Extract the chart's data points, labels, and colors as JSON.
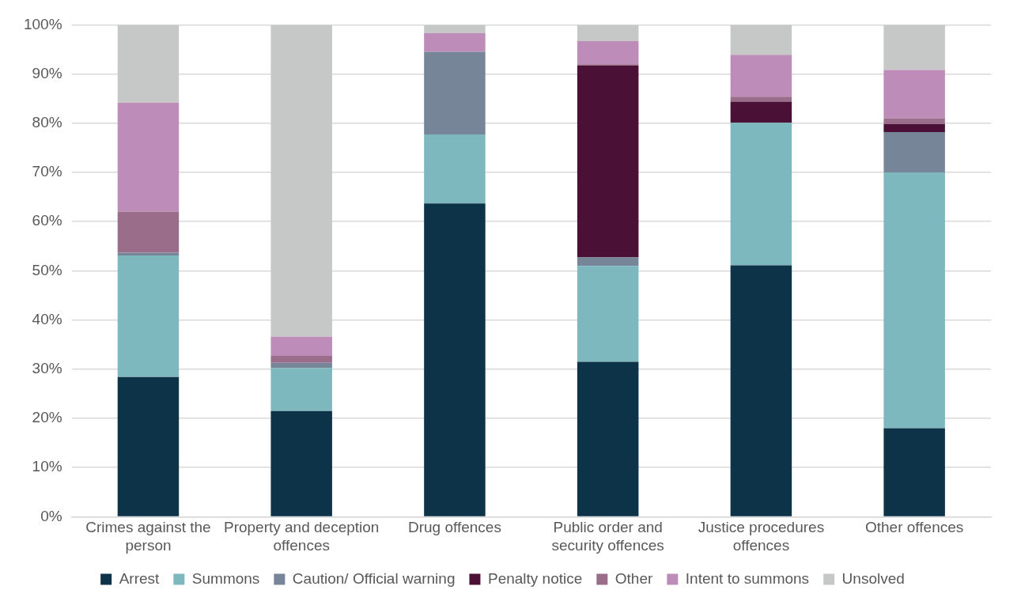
{
  "chart_data": {
    "type": "bar",
    "stacked": true,
    "categories": [
      "Crimes against the person",
      "Property and deception offences",
      "Drug offences",
      "Public order and security offences",
      "Justice procedures offences",
      "Other offences"
    ],
    "series": [
      {
        "name": "Arrest",
        "color": "#0d3349",
        "values": [
          28.4,
          21.5,
          63.7,
          31.5,
          51.1,
          18.0
        ]
      },
      {
        "name": "Summons",
        "color": "#7db8bf",
        "values": [
          24.7,
          8.7,
          14.0,
          19.5,
          29.0,
          52.0
        ]
      },
      {
        "name": "Caution/ Official warning",
        "color": "#778598",
        "values": [
          0.6,
          1.1,
          16.8,
          1.7,
          0,
          8.2
        ]
      },
      {
        "name": "Penalty notice",
        "color": "#4a1035",
        "values": [
          0,
          0,
          0,
          39.0,
          4.3,
          1.6
        ]
      },
      {
        "name": "Other",
        "color": "#9a6e8a",
        "values": [
          8.3,
          1.4,
          0,
          0.3,
          1.0,
          1.2
        ]
      },
      {
        "name": "Intent to summons",
        "color": "#bd8cb8",
        "values": [
          22.2,
          3.9,
          3.8,
          4.7,
          8.5,
          9.8
        ]
      },
      {
        "name": "Unsolved",
        "color": "#c6c7c7",
        "values": [
          15.8,
          63.4,
          1.7,
          3.3,
          6.1,
          9.2
        ]
      }
    ],
    "ylim": [
      0,
      100
    ],
    "yticks": [
      {
        "value": 0,
        "label": "0%"
      },
      {
        "value": 10,
        "label": "10%"
      },
      {
        "value": 20,
        "label": "20%"
      },
      {
        "value": 30,
        "label": "30%"
      },
      {
        "value": 40,
        "label": "40%"
      },
      {
        "value": 50,
        "label": "50%"
      },
      {
        "value": 60,
        "label": "60%"
      },
      {
        "value": 70,
        "label": "70%"
      },
      {
        "value": 80,
        "label": "80%"
      },
      {
        "value": 90,
        "label": "90%"
      },
      {
        "value": 100,
        "label": "100%"
      }
    ],
    "grid": "y",
    "legend": "bottom"
  }
}
